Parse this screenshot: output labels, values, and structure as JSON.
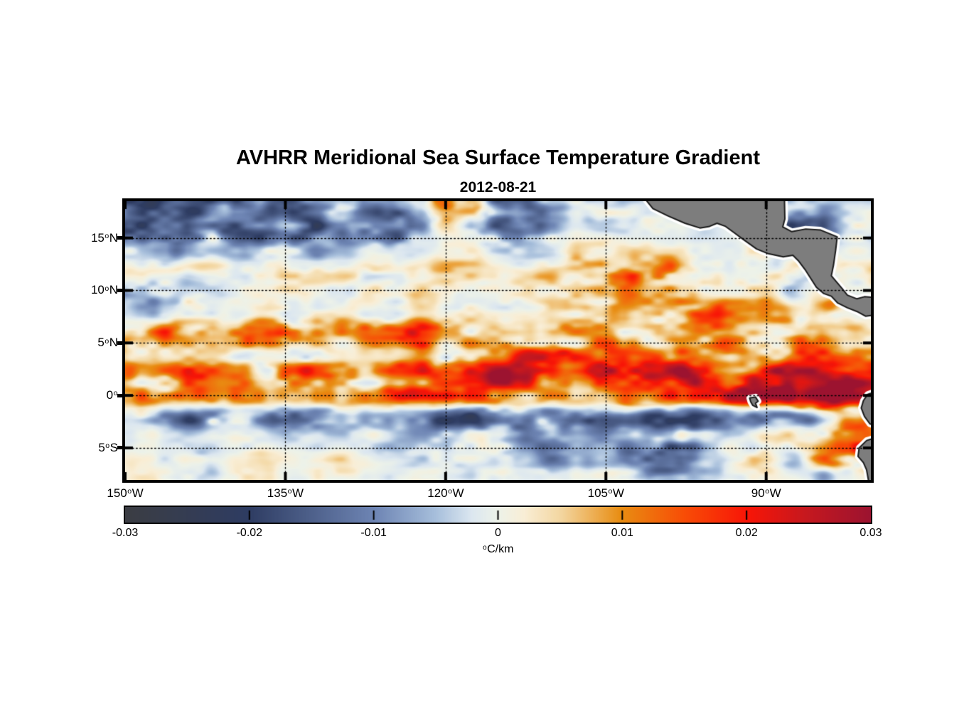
{
  "chart_data": {
    "type": "heatmap",
    "title": "AVHRR Meridional Sea Surface Temperature Gradient",
    "subtitle": "2012-08-21",
    "deg": "o",
    "lon_range": [
      -150,
      -80.2
    ],
    "lat_range": [
      -8.05,
      18.5
    ],
    "value_range": [
      -0.03,
      0.03
    ],
    "grid_on": true,
    "grid_style": "dotted",
    "lon_ticks": [
      {
        "value": -150,
        "num": "150",
        "dir": "W"
      },
      {
        "value": -135,
        "num": "135",
        "dir": "W"
      },
      {
        "value": -120,
        "num": "120",
        "dir": "W"
      },
      {
        "value": -105,
        "num": "105",
        "dir": "W"
      },
      {
        "value": -90,
        "num": "90",
        "dir": "W"
      }
    ],
    "lat_ticks": [
      {
        "value": 15,
        "num": "15",
        "dir": "N"
      },
      {
        "value": 10,
        "num": "10",
        "dir": "N"
      },
      {
        "value": 5,
        "num": "5",
        "dir": "N"
      },
      {
        "value": 0,
        "num": "0",
        "dir": ""
      },
      {
        "value": -5,
        "num": "5",
        "dir": "S"
      }
    ],
    "colorbar": {
      "tick_values": [
        -0.03,
        -0.02,
        -0.01,
        0,
        0.01,
        0.02,
        0.03
      ],
      "tick_labels": [
        "-0.03",
        "-0.02",
        "-0.01",
        "0",
        "0.01",
        "0.02",
        "0.03"
      ],
      "unit_deg": "o",
      "unit_text": "C/km"
    },
    "colormap_stops": [
      {
        "t": 0.0,
        "c": "#3b3d43"
      },
      {
        "t": 0.165,
        "c": "#2e3c62"
      },
      {
        "t": 0.335,
        "c": "#6e85b4"
      },
      {
        "t": 0.415,
        "c": "#a6bedb"
      },
      {
        "t": 0.465,
        "c": "#dce7f0"
      },
      {
        "t": 0.5,
        "c": "#edf2e9"
      },
      {
        "t": 0.535,
        "c": "#f9eed6"
      },
      {
        "t": 0.585,
        "c": "#f3d6a0"
      },
      {
        "t": 0.665,
        "c": "#e88d12"
      },
      {
        "t": 0.75,
        "c": "#f84d06"
      },
      {
        "t": 0.835,
        "c": "#f81507"
      },
      {
        "t": 0.915,
        "c": "#c5181f"
      },
      {
        "t": 1.0,
        "c": "#9c1330"
      }
    ],
    "land_color": "#7d7d7d",
    "coast_outline": "#1a1a1a",
    "coast_halo": "#ffffff",
    "grid_lats": [
      18.5,
      16,
      14,
      12,
      10,
      8,
      6,
      4,
      2,
      0,
      -2,
      -4,
      -6,
      -8
    ],
    "grid_lons": [
      -150,
      -147.5,
      -145,
      -142.5,
      -140,
      -137.5,
      -135,
      -132.5,
      -130,
      -127.5,
      -125,
      -122.5,
      -120,
      -117.5,
      -115,
      -112.5,
      -110,
      -107.5,
      -105,
      -102.5,
      -100,
      -97.5,
      -95,
      -92.5,
      -90,
      -87.5,
      -85,
      -82.5,
      -80
    ],
    "values_milli_degC_per_km": [
      [
        -18,
        -24,
        -14,
        -20,
        -10,
        -8,
        -16,
        -10,
        -5,
        -14,
        -8,
        0,
        12,
        8,
        -14,
        -18,
        -8,
        -3,
        -4,
        -2,
        -1,
        0,
        0,
        -1,
        -2,
        -5,
        -3,
        -2,
        -1
      ],
      [
        -10,
        -16,
        -20,
        -12,
        -18,
        -14,
        -10,
        -16,
        -8,
        -10,
        -16,
        -6,
        3,
        -4,
        -18,
        -14,
        -5,
        -2,
        -3,
        -2,
        -1,
        0,
        0,
        0,
        -3,
        -14,
        -8,
        -3,
        -2
      ],
      [
        -4,
        -6,
        -8,
        -5,
        -8,
        -6,
        -4,
        -6,
        -3,
        -4,
        -6,
        -2,
        0,
        2,
        -6,
        -4,
        -2,
        2,
        4,
        3,
        2,
        1,
        0,
        0,
        0,
        -2,
        -4,
        -2,
        -1
      ],
      [
        2,
        3,
        2,
        4,
        3,
        2,
        4,
        3,
        2,
        3,
        2,
        3,
        4,
        3,
        2,
        3,
        4,
        6,
        8,
        12,
        14,
        6,
        3,
        2,
        2,
        3,
        -4,
        2,
        3
      ],
      [
        -6,
        -8,
        -5,
        -3,
        -2,
        0,
        2,
        1,
        0,
        1,
        2,
        3,
        2,
        1,
        2,
        3,
        4,
        5,
        6,
        8,
        10,
        8,
        5,
        4,
        6,
        -6,
        2,
        3,
        2
      ],
      [
        -4,
        -5,
        -3,
        -2,
        0,
        2,
        3,
        2,
        1,
        0,
        1,
        2,
        3,
        2,
        -3,
        -2,
        3,
        7,
        8,
        6,
        8,
        10,
        12,
        8,
        6,
        5,
        10,
        3,
        2
      ],
      [
        8,
        12,
        14,
        10,
        8,
        14,
        18,
        12,
        10,
        12,
        10,
        16,
        18,
        6,
        4,
        5,
        6,
        8,
        6,
        5,
        8,
        10,
        8,
        6,
        8,
        10,
        10,
        4,
        3
      ],
      [
        6,
        4,
        2,
        3,
        4,
        2,
        3,
        4,
        2,
        3,
        4,
        8,
        6,
        4,
        10,
        18,
        16,
        10,
        14,
        12,
        10,
        16,
        18,
        12,
        8,
        10,
        12,
        8,
        5
      ],
      [
        10,
        8,
        12,
        12,
        9,
        6,
        10,
        16,
        12,
        8,
        14,
        18,
        24,
        28,
        26,
        22,
        16,
        20,
        22,
        20,
        24,
        28,
        20,
        16,
        22,
        26,
        28,
        24,
        20
      ],
      [
        8,
        10,
        9,
        11,
        10,
        8,
        10,
        14,
        11,
        9,
        12,
        20,
        26,
        14,
        12,
        10,
        14,
        12,
        10,
        18,
        22,
        16,
        18,
        24,
        26,
        28,
        30,
        28,
        26
      ],
      [
        -4,
        -6,
        -10,
        -12,
        -8,
        -6,
        -12,
        -14,
        -8,
        -5,
        -6,
        -8,
        -14,
        -18,
        -12,
        -8,
        -14,
        -10,
        -16,
        -12,
        -18,
        -20,
        -14,
        -6,
        -10,
        -8,
        -6,
        4,
        8
      ],
      [
        -1,
        0,
        -2,
        -1,
        0,
        -1,
        -2,
        0,
        -1,
        -2,
        -2,
        -4,
        -8,
        -6,
        -4,
        -6,
        -8,
        -4,
        -6,
        -8,
        -12,
        -8,
        -4,
        -2,
        2,
        6,
        4,
        14,
        16
      ],
      [
        1,
        2,
        1,
        -2,
        1,
        2,
        1,
        -1,
        2,
        1,
        -2,
        -3,
        -2,
        -4,
        -2,
        -3,
        -6,
        -4,
        -2,
        -6,
        -14,
        -10,
        -4,
        2,
        4,
        -4,
        10,
        6,
        18
      ],
      [
        0,
        1,
        0,
        -1,
        0,
        1,
        0,
        -1,
        0,
        1,
        0,
        -1,
        -2,
        -1,
        -3,
        -2,
        -1,
        -2,
        -3,
        -2,
        -4,
        -2,
        -1,
        0,
        1,
        -2,
        -8,
        2,
        6
      ]
    ],
    "land_polygons": {
      "central_america": [
        [
          -101.8,
          19.3
        ],
        [
          -100.6,
          17.8
        ],
        [
          -99.2,
          17.1
        ],
        [
          -97.6,
          16.4
        ],
        [
          -96.2,
          15.95
        ],
        [
          -95.3,
          16.1
        ],
        [
          -94.6,
          16.4
        ],
        [
          -93.8,
          16.1
        ],
        [
          -93.0,
          15.5
        ],
        [
          -92.2,
          14.9
        ],
        [
          -90.9,
          13.95
        ],
        [
          -89.8,
          13.5
        ],
        [
          -88.4,
          13.2
        ],
        [
          -87.5,
          13.35
        ],
        [
          -87.0,
          12.85
        ],
        [
          -86.3,
          11.9
        ],
        [
          -85.8,
          11.1
        ],
        [
          -85.3,
          10.3
        ],
        [
          -84.6,
          9.7
        ],
        [
          -83.9,
          9.45
        ],
        [
          -83.3,
          8.8
        ],
        [
          -82.4,
          8.35
        ],
        [
          -81.4,
          7.95
        ],
        [
          -80.7,
          7.55
        ],
        [
          -79.4,
          7.7
        ],
        [
          -79.4,
          9.3
        ],
        [
          -80.8,
          9.4
        ],
        [
          -81.5,
          9.2
        ],
        [
          -82.4,
          9.55
        ],
        [
          -82.9,
          10.2
        ],
        [
          -83.9,
          11.4
        ],
        [
          -83.7,
          12.4
        ],
        [
          -83.5,
          13.8
        ],
        [
          -83.35,
          15.1
        ],
        [
          -84.9,
          15.75
        ],
        [
          -86.3,
          15.85
        ],
        [
          -87.6,
          15.6
        ],
        [
          -88.45,
          16.05
        ],
        [
          -88.25,
          16.8
        ],
        [
          -88.3,
          19.3
        ]
      ],
      "ecuador_coast": [
        [
          -79.4,
          0.5
        ],
        [
          -80.5,
          0.1
        ],
        [
          -80.9,
          -0.5
        ],
        [
          -81.1,
          -1.2
        ],
        [
          -80.8,
          -2.0
        ],
        [
          -80.3,
          -2.7
        ],
        [
          -79.4,
          -3.1
        ]
      ],
      "peru_coast": [
        [
          -79.4,
          -3.9
        ],
        [
          -80.6,
          -4.3
        ],
        [
          -81.3,
          -5.0
        ],
        [
          -81.4,
          -5.8
        ],
        [
          -80.9,
          -6.4
        ],
        [
          -80.6,
          -7.1
        ],
        [
          -80.3,
          -8.8
        ],
        [
          -79.4,
          -8.8
        ]
      ],
      "galapagos": [
        [
          -91.55,
          -0.25
        ],
        [
          -91.0,
          -0.15
        ],
        [
          -90.75,
          -0.55
        ],
        [
          -91.0,
          -0.75
        ],
        [
          -90.85,
          -1.15
        ],
        [
          -91.25,
          -0.95
        ],
        [
          -91.45,
          -0.6
        ]
      ]
    }
  }
}
